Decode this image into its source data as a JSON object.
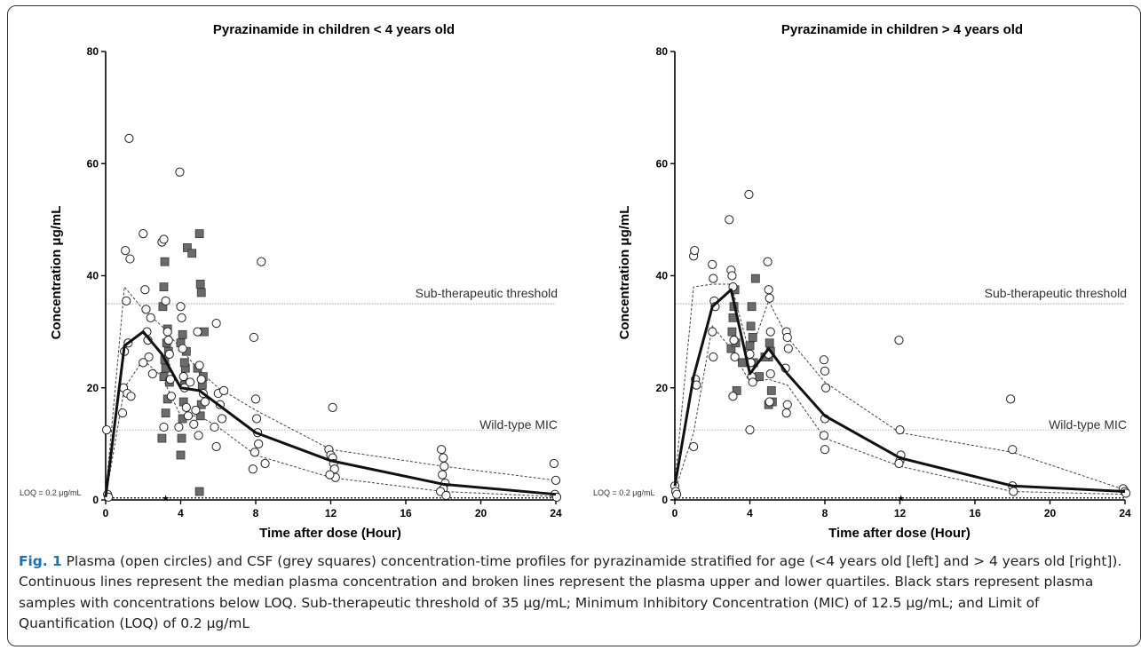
{
  "figure": {
    "label": "Fig. 1",
    "caption": "Plasma (open circles) and CSF (grey squares) concentration-time profiles for pyrazinamide stratified for age (<4 years old [left] and > 4 years old [right]). Continuous lines represent the median plasma concentration and broken lines represent the plasma upper and lower quartiles. Black stars represent plasma samples with concentrations below LOQ. Sub-therapeutic threshold of 35 μg/mL; Minimum Inhibitory Concentration (MIC) of 12.5 μg/mL; and Limit of Quantification (LOQ) of 0.2 μg/mL"
  },
  "colors": {
    "csf_square": "#6b6b6b",
    "median_line": "#111111",
    "quartile_line": "#444444",
    "threshold_line": "#9a9a9a",
    "caption_label": "#1a6fb5"
  },
  "chart_data": [
    {
      "type": "scatter",
      "title": "Pyrazinamide in children < 4 years old",
      "xlabel": "Time after dose (Hour)",
      "ylabel": "Concentration μg/mL",
      "xlim": [
        0,
        24
      ],
      "ylim": [
        0,
        80
      ],
      "x_ticks": [
        0,
        4,
        8,
        12,
        16,
        20,
        24
      ],
      "y_ticks": [
        0,
        20,
        40,
        60,
        80
      ],
      "thresholds": [
        {
          "label": "Sub-therapeutic threshold",
          "y": 35
        },
        {
          "label": "Wild-type MIC",
          "y": 12.5
        }
      ],
      "loq_label": "LOQ = 0.2 μg/mL",
      "loq": 0.2,
      "median": {
        "x": [
          0,
          1,
          2,
          3,
          4,
          5,
          6,
          8,
          12,
          18,
          24
        ],
        "y": [
          0.5,
          27.5,
          30,
          26,
          20,
          19.5,
          17,
          12,
          7,
          2.8,
          1
        ]
      },
      "upper_quartile": {
        "x": [
          0,
          1,
          2,
          3,
          4,
          5,
          6,
          8,
          12,
          18,
          24
        ],
        "y": [
          1,
          38,
          34,
          31,
          27,
          23,
          20,
          16,
          9,
          6,
          3.5
        ]
      },
      "lower_quartile": {
        "x": [
          0,
          1,
          2,
          3,
          4,
          5,
          6,
          8,
          12,
          18,
          24
        ],
        "y": [
          0.3,
          20,
          25,
          22,
          15,
          15,
          13,
          8,
          4,
          1.5,
          0.6
        ]
      },
      "plasma_circles": [
        [
          0.05,
          12.5
        ],
        [
          0.1,
          1
        ],
        [
          0.15,
          0.5
        ],
        [
          0.9,
          15.5
        ],
        [
          0.95,
          20
        ],
        [
          1.0,
          26.5
        ],
        [
          1.05,
          44.5
        ],
        [
          1.1,
          35.5
        ],
        [
          1.15,
          19
        ],
        [
          1.2,
          28
        ],
        [
          1.25,
          64.5
        ],
        [
          1.3,
          43
        ],
        [
          1.35,
          18.5
        ],
        [
          2.0,
          47.5
        ],
        [
          2.1,
          37.5
        ],
        [
          2.15,
          34
        ],
        [
          2.2,
          30
        ],
        [
          2.25,
          28.5
        ],
        [
          2.3,
          25.5
        ],
        [
          2.4,
          32.5
        ],
        [
          2.0,
          24.5
        ],
        [
          2.5,
          22.5
        ],
        [
          3.0,
          46
        ],
        [
          3.1,
          46.5
        ],
        [
          3.2,
          35.5
        ],
        [
          3.3,
          30
        ],
        [
          3.35,
          28.5
        ],
        [
          3.4,
          26
        ],
        [
          3.45,
          21.5
        ],
        [
          3.5,
          18.5
        ],
        [
          3.1,
          13
        ],
        [
          3.95,
          58.5
        ],
        [
          4.0,
          34.5
        ],
        [
          4.05,
          32.5
        ],
        [
          4.1,
          27
        ],
        [
          4.15,
          22
        ],
        [
          4.2,
          20
        ],
        [
          4.3,
          16.5
        ],
        [
          4.4,
          15
        ],
        [
          3.9,
          13
        ],
        [
          4.5,
          21
        ],
        [
          4.9,
          30
        ],
        [
          5.0,
          24
        ],
        [
          5.1,
          21.5
        ],
        [
          5.2,
          19
        ],
        [
          5.3,
          17.5
        ],
        [
          4.8,
          16
        ],
        [
          4.7,
          13.5
        ],
        [
          4.95,
          11.5
        ],
        [
          5.9,
          31.5
        ],
        [
          6.0,
          19
        ],
        [
          6.1,
          17
        ],
        [
          6.2,
          14.5
        ],
        [
          6.3,
          19.5
        ],
        [
          5.8,
          13
        ],
        [
          5.9,
          9.5
        ],
        [
          7.9,
          29
        ],
        [
          8.0,
          18
        ],
        [
          8.05,
          14.5
        ],
        [
          8.1,
          12
        ],
        [
          8.15,
          10
        ],
        [
          7.95,
          8.5
        ],
        [
          8.3,
          42.5
        ],
        [
          8.5,
          6.5
        ],
        [
          7.85,
          5.5
        ],
        [
          11.9,
          9
        ],
        [
          12.0,
          8
        ],
        [
          12.1,
          7.5
        ],
        [
          12.15,
          6.5
        ],
        [
          12.2,
          5.5
        ],
        [
          12.25,
          4
        ],
        [
          12.1,
          16.5
        ],
        [
          11.95,
          4.5
        ],
        [
          17.9,
          9
        ],
        [
          18.0,
          7.5
        ],
        [
          18.05,
          6
        ],
        [
          17.95,
          4.5
        ],
        [
          18.1,
          3
        ],
        [
          18.0,
          2
        ],
        [
          17.85,
          1.5
        ],
        [
          18.15,
          0.8
        ],
        [
          23.9,
          6.5
        ],
        [
          24.0,
          3.5
        ],
        [
          23.95,
          1
        ],
        [
          24.05,
          0.5
        ]
      ],
      "csf_squares": [
        [
          3.0,
          11
        ],
        [
          3.1,
          22
        ],
        [
          3.15,
          25
        ],
        [
          3.2,
          23.5
        ],
        [
          3.25,
          28
        ],
        [
          3.3,
          30.5
        ],
        [
          3.05,
          34.5
        ],
        [
          3.1,
          38
        ],
        [
          3.15,
          42.5
        ],
        [
          3.2,
          15.5
        ],
        [
          3.3,
          18
        ],
        [
          3.35,
          26.5
        ],
        [
          3.4,
          21
        ],
        [
          4.0,
          8
        ],
        [
          4.05,
          11
        ],
        [
          4.1,
          14.5
        ],
        [
          4.15,
          17.5
        ],
        [
          4.2,
          20.5
        ],
        [
          4.25,
          23.5
        ],
        [
          4.3,
          26.5
        ],
        [
          4.0,
          28
        ],
        [
          4.35,
          45
        ],
        [
          4.6,
          44
        ],
        [
          4.1,
          29.5
        ],
        [
          4.2,
          24.5
        ],
        [
          5.0,
          1.5
        ],
        [
          5.05,
          15
        ],
        [
          5.1,
          17
        ],
        [
          5.15,
          20.5
        ],
        [
          5.2,
          22
        ],
        [
          5.0,
          47.5
        ],
        [
          5.05,
          38.5
        ],
        [
          5.1,
          37
        ],
        [
          5.25,
          30
        ],
        [
          4.9,
          23.5
        ]
      ],
      "loq_stars": [
        [
          3.2,
          0.2
        ]
      ]
    },
    {
      "type": "scatter",
      "title": "Pyrazinamide in children > 4 years old",
      "xlabel": "Time after dose (Hour)",
      "ylabel": "Concentration μg/mL",
      "xlim": [
        0,
        24
      ],
      "ylim": [
        0,
        80
      ],
      "x_ticks": [
        0,
        4,
        8,
        12,
        16,
        20,
        24
      ],
      "y_ticks": [
        0,
        20,
        40,
        60,
        80
      ],
      "thresholds": [
        {
          "label": "Sub-therapeutic threshold",
          "y": 35
        },
        {
          "label": "Wild-type MIC",
          "y": 12.5
        }
      ],
      "loq_label": "LOQ = 0.2 μg/mL",
      "loq": 0.2,
      "median": {
        "x": [
          0,
          1,
          2,
          3,
          4,
          5,
          6,
          8,
          12,
          18,
          24
        ],
        "y": [
          2.5,
          22,
          34.5,
          37.5,
          22.5,
          27,
          22.5,
          15,
          7.5,
          2.5,
          1.5
        ]
      },
      "upper_quartile": {
        "x": [
          0,
          1,
          2,
          3,
          4,
          5,
          6,
          8,
          12,
          18,
          24
        ],
        "y": [
          3,
          38,
          38.5,
          38.5,
          26,
          35.5,
          29,
          21,
          12,
          8.5,
          1.8
        ]
      },
      "lower_quartile": {
        "x": [
          0,
          1,
          2,
          3,
          4,
          5,
          6,
          8,
          12,
          18,
          24
        ],
        "y": [
          1.5,
          12,
          31,
          27,
          21,
          21.5,
          20.5,
          11,
          6,
          1.5,
          1
        ]
      },
      "plasma_circles": [
        [
          0.0,
          2.5
        ],
        [
          0.05,
          1.5
        ],
        [
          0.1,
          1
        ],
        [
          1.0,
          43.5
        ],
        [
          1.05,
          44.5
        ],
        [
          1.1,
          21.5
        ],
        [
          1.15,
          20.5
        ],
        [
          1.0,
          9.5
        ],
        [
          2.0,
          42
        ],
        [
          2.05,
          39.5
        ],
        [
          2.1,
          35.5
        ],
        [
          2.15,
          34.5
        ],
        [
          2.0,
          30
        ],
        [
          2.05,
          25.5
        ],
        [
          2.9,
          50
        ],
        [
          3.0,
          41
        ],
        [
          3.05,
          40
        ],
        [
          3.1,
          38
        ],
        [
          3.15,
          28.5
        ],
        [
          3.2,
          25.5
        ],
        [
          3.1,
          18.5
        ],
        [
          3.95,
          54.5
        ],
        [
          4.0,
          26
        ],
        [
          4.05,
          24.5
        ],
        [
          4.1,
          22
        ],
        [
          4.15,
          21
        ],
        [
          4.0,
          12.5
        ],
        [
          4.95,
          42.5
        ],
        [
          5.0,
          37.5
        ],
        [
          5.05,
          36
        ],
        [
          5.1,
          30
        ],
        [
          5.0,
          26
        ],
        [
          5.05,
          17.5
        ],
        [
          5.1,
          22.5
        ],
        [
          5.95,
          30
        ],
        [
          6.0,
          29
        ],
        [
          6.05,
          27
        ],
        [
          5.9,
          23.5
        ],
        [
          6.0,
          17
        ],
        [
          5.95,
          15.5
        ],
        [
          7.95,
          25
        ],
        [
          8.0,
          23
        ],
        [
          8.05,
          20
        ],
        [
          8.0,
          14.5
        ],
        [
          7.95,
          11.5
        ],
        [
          8.0,
          9
        ],
        [
          11.95,
          28.5
        ],
        [
          12.0,
          12.5
        ],
        [
          12.05,
          8
        ],
        [
          12.0,
          7
        ],
        [
          11.95,
          6.5
        ],
        [
          17.9,
          18
        ],
        [
          18.0,
          9
        ],
        [
          18.0,
          2.5
        ],
        [
          18.05,
          1.5
        ],
        [
          23.9,
          2
        ],
        [
          24.0,
          1.5
        ],
        [
          24.05,
          1.2
        ]
      ],
      "csf_squares": [
        [
          3.0,
          27
        ],
        [
          3.05,
          30
        ],
        [
          3.1,
          32.5
        ],
        [
          3.15,
          34.5
        ],
        [
          3.2,
          37.5
        ],
        [
          3.3,
          19.5
        ],
        [
          3.25,
          28
        ],
        [
          3.6,
          24.5
        ],
        [
          4.0,
          27.5
        ],
        [
          4.05,
          31
        ],
        [
          4.1,
          34.5
        ],
        [
          4.15,
          29
        ],
        [
          4.2,
          24.5
        ],
        [
          4.3,
          39.5
        ],
        [
          4.5,
          22
        ],
        [
          5.0,
          25.5
        ],
        [
          5.05,
          28
        ],
        [
          5.1,
          26.5
        ],
        [
          5.15,
          19.5
        ],
        [
          5.2,
          17.5
        ],
        [
          5.0,
          17
        ],
        [
          4.8,
          25.5
        ]
      ],
      "loq_stars": [
        [
          12.05,
          0.2
        ]
      ]
    }
  ]
}
